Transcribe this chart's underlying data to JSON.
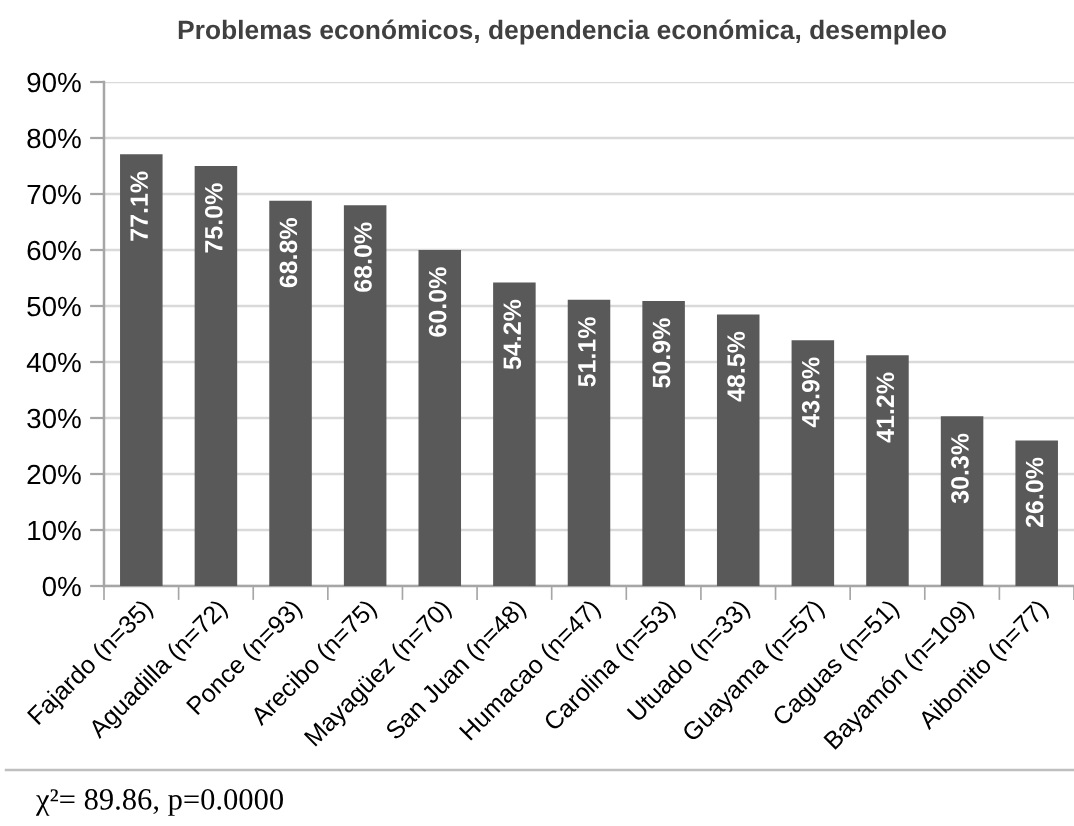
{
  "chart_data": {
    "type": "bar",
    "title": "Problemas económicos, dependencia económica, desempleo",
    "categories": [
      "Fajardo (n=35)",
      "Aguadilla (n=72)",
      "Ponce (n=93)",
      "Arecibo (n=75)",
      "Mayagüez (n=70)",
      "San Juan (n=48)",
      "Humacao (n=47)",
      "Carolina (n=53)",
      "Utuado (n=33)",
      "Guayama (n=57)",
      "Caguas (n=51)",
      "Bayamón (n=109)",
      "Aibonito (n=77)"
    ],
    "values": [
      77.1,
      75.0,
      68.8,
      68.0,
      60.0,
      54.2,
      51.1,
      50.9,
      48.5,
      43.9,
      41.2,
      30.3,
      26.0
    ],
    "value_labels": [
      "77.1%",
      "75.0%",
      "68.8%",
      "68.0%",
      "60.0%",
      "54.2%",
      "51.1%",
      "50.9%",
      "48.5%",
      "43.9%",
      "41.2%",
      "30.3%",
      "26.0%"
    ],
    "color": "#595959",
    "ylim": [
      0,
      90
    ],
    "yticks": [
      {
        "value": 0,
        "label": "0%"
      },
      {
        "value": 10,
        "label": "10%"
      },
      {
        "value": 20,
        "label": "20%"
      },
      {
        "value": 30,
        "label": "30%"
      },
      {
        "value": 40,
        "label": "40%"
      },
      {
        "value": 50,
        "label": "50%"
      },
      {
        "value": 60,
        "label": "60%"
      },
      {
        "value": 70,
        "label": "70%"
      },
      {
        "value": 80,
        "label": "80%"
      },
      {
        "value": 90,
        "label": "90%"
      }
    ],
    "grid": "y",
    "annotations": [
      "χ²= 89.86, p=0.0000"
    ]
  }
}
